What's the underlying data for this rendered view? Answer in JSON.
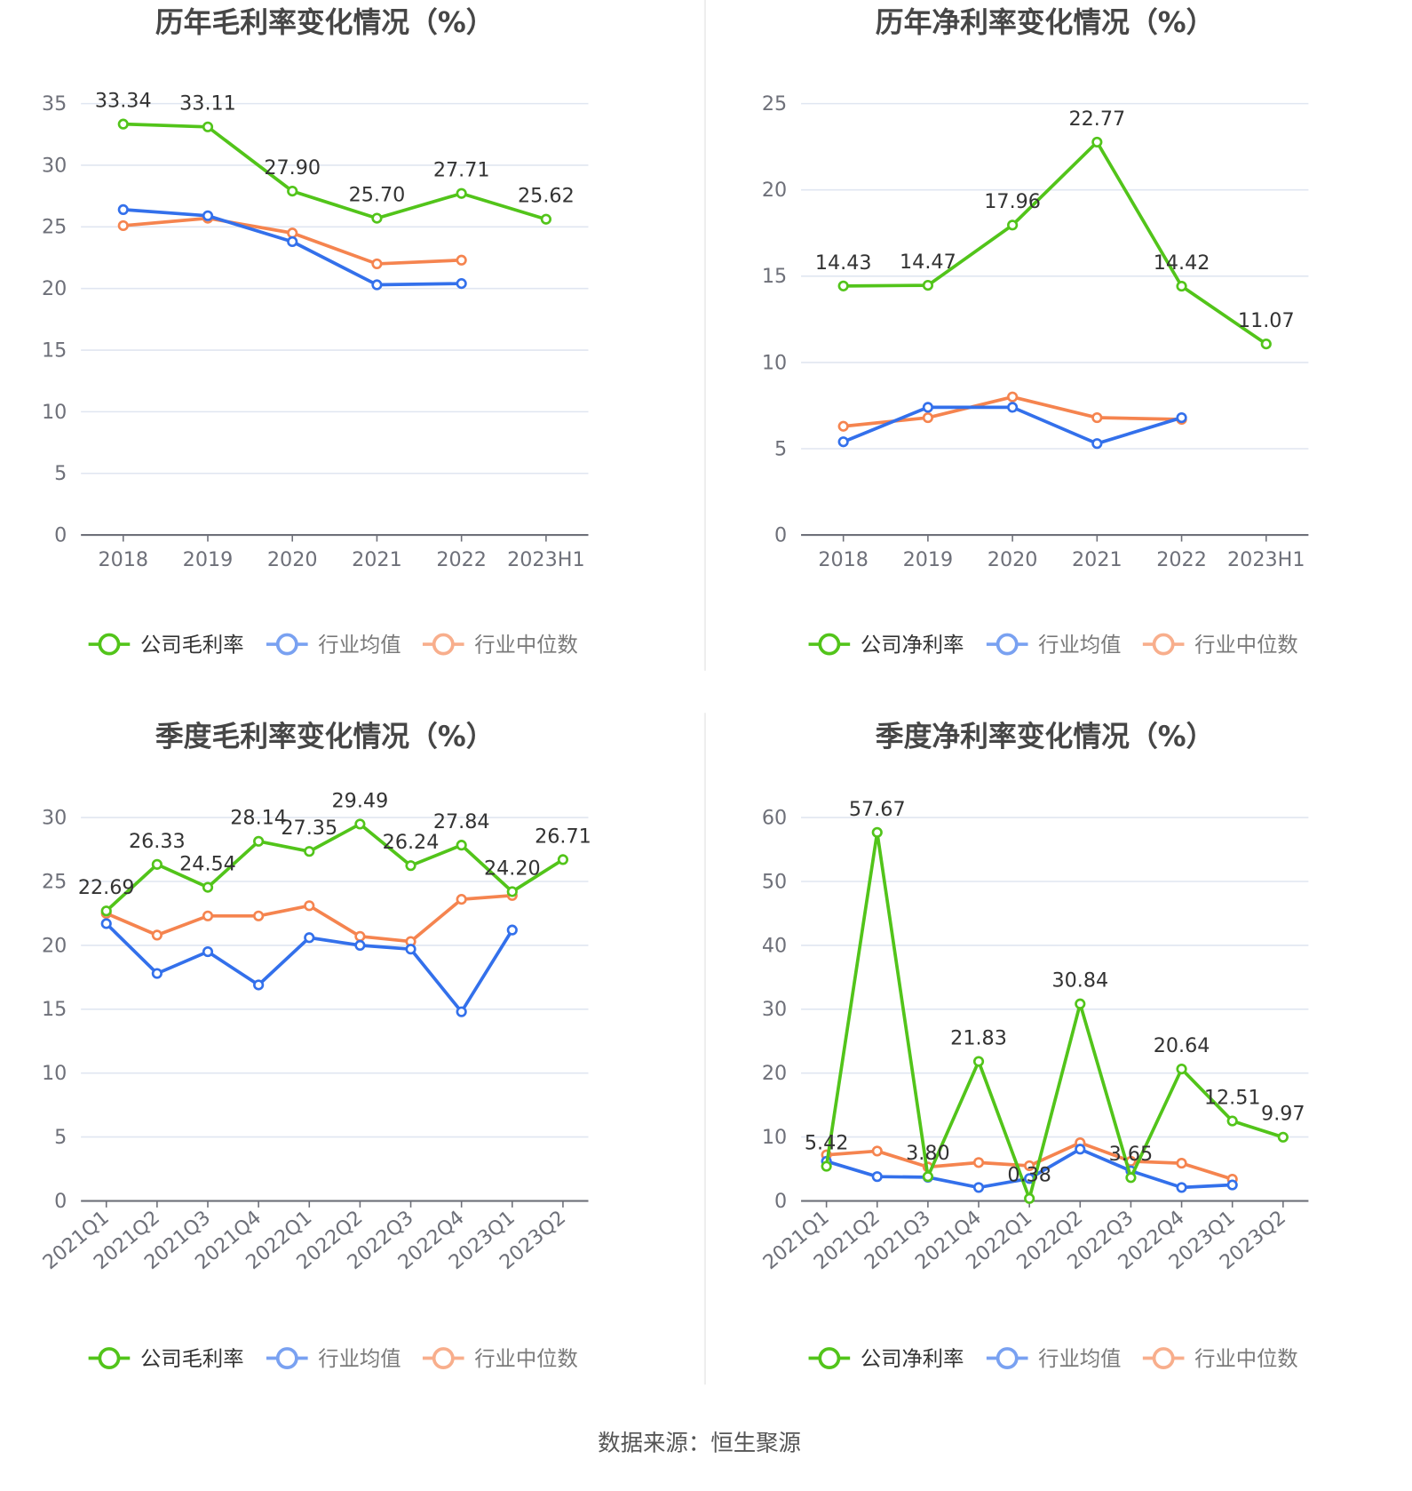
{
  "source": "数据来源：恒生聚源",
  "colors": {
    "company": "#52c41a",
    "avg": "#3370eb",
    "median": "#f5844f",
    "grid": "#e0e6f1",
    "axis": "#6e7079"
  },
  "chart_data": [
    {
      "type": "line",
      "title": "历年毛利率变化情况（%）",
      "ylim": [
        0,
        35
      ],
      "yticks": [
        "0",
        "5",
        "10",
        "15",
        "20",
        "25",
        "30",
        "35"
      ],
      "categories": [
        "2018",
        "2019",
        "2020",
        "2021",
        "2022",
        "2023H1"
      ],
      "legend": [
        "公司毛利率",
        "行业均值",
        "行业中位数"
      ],
      "series": [
        {
          "name": "公司毛利率",
          "values": [
            33.34,
            33.11,
            27.9,
            25.7,
            27.71,
            25.62
          ],
          "labels": [
            "33.34",
            "33.11",
            "27.90",
            "25.70",
            "27.71",
            "25.62"
          ]
        },
        {
          "name": "行业均值",
          "values": [
            26.4,
            25.9,
            23.8,
            20.3,
            20.4,
            null
          ]
        },
        {
          "name": "行业中位数",
          "values": [
            25.1,
            25.7,
            24.5,
            22.0,
            22.3,
            null
          ]
        }
      ]
    },
    {
      "type": "line",
      "title": "历年净利率变化情况（%）",
      "ylim": [
        0,
        25
      ],
      "yticks": [
        "0",
        "5",
        "10",
        "15",
        "20",
        "25"
      ],
      "categories": [
        "2018",
        "2019",
        "2020",
        "2021",
        "2022",
        "2023H1"
      ],
      "legend": [
        "公司净利率",
        "行业均值",
        "行业中位数"
      ],
      "series": [
        {
          "name": "公司净利率",
          "values": [
            14.43,
            14.47,
            17.96,
            22.77,
            14.42,
            11.07
          ],
          "labels": [
            "14.43",
            "14.47",
            "17.96",
            "22.77",
            "14.42",
            "11.07"
          ]
        },
        {
          "name": "行业均值",
          "values": [
            5.4,
            7.4,
            7.4,
            5.3,
            6.8,
            null
          ]
        },
        {
          "name": "行业中位数",
          "values": [
            6.3,
            6.8,
            8.0,
            6.8,
            6.7,
            null
          ]
        }
      ]
    },
    {
      "type": "line",
      "title": "季度毛利率变化情况（%）",
      "ylim": [
        0,
        30
      ],
      "yticks": [
        "0",
        "5",
        "10",
        "15",
        "20",
        "25",
        "30"
      ],
      "categories": [
        "2021Q1",
        "2021Q2",
        "2021Q3",
        "2021Q4",
        "2022Q1",
        "2022Q2",
        "2022Q3",
        "2022Q4",
        "2023Q1",
        "2023Q2"
      ],
      "legend": [
        "公司毛利率",
        "行业均值",
        "行业中位数"
      ],
      "series": [
        {
          "name": "公司毛利率",
          "values": [
            22.69,
            26.33,
            24.54,
            28.14,
            27.35,
            29.49,
            26.24,
            27.84,
            24.2,
            26.71
          ],
          "labels": [
            "22.69",
            "26.33",
            "24.54",
            "28.14",
            "27.35",
            "29.49",
            "26.24",
            "27.84",
            "24.20",
            "26.71"
          ]
        },
        {
          "name": "行业均值",
          "values": [
            21.7,
            17.8,
            19.5,
            16.9,
            20.6,
            20.0,
            19.7,
            14.8,
            21.2,
            null
          ]
        },
        {
          "name": "行业中位数",
          "values": [
            22.5,
            20.8,
            22.3,
            22.3,
            23.1,
            20.7,
            20.3,
            23.6,
            23.9,
            null
          ]
        }
      ]
    },
    {
      "type": "line",
      "title": "季度净利率变化情况（%）",
      "ylim": [
        0,
        60
      ],
      "yticks": [
        "0",
        "10",
        "20",
        "30",
        "40",
        "50",
        "60"
      ],
      "categories": [
        "2021Q1",
        "2021Q2",
        "2021Q3",
        "2021Q4",
        "2022Q1",
        "2022Q2",
        "2022Q3",
        "2022Q4",
        "2023Q1",
        "2023Q2"
      ],
      "legend": [
        "公司净利率",
        "行业均值",
        "行业中位数"
      ],
      "series": [
        {
          "name": "公司净利率",
          "values": [
            5.42,
            57.67,
            3.8,
            21.83,
            0.38,
            30.84,
            3.65,
            20.64,
            12.51,
            9.97
          ],
          "labels": [
            "5.42",
            "57.67",
            "3.80",
            "21.83",
            "0.38",
            "30.84",
            "3.65",
            "20.64",
            "12.51",
            "9.97"
          ]
        },
        {
          "name": "行业均值",
          "values": [
            6.2,
            3.8,
            3.7,
            2.1,
            3.5,
            8.1,
            4.7,
            2.1,
            2.5,
            null
          ]
        },
        {
          "name": "行业中位数",
          "values": [
            7.2,
            7.8,
            5.3,
            6.0,
            5.5,
            9.1,
            6.2,
            5.9,
            3.4,
            null
          ]
        }
      ]
    }
  ]
}
